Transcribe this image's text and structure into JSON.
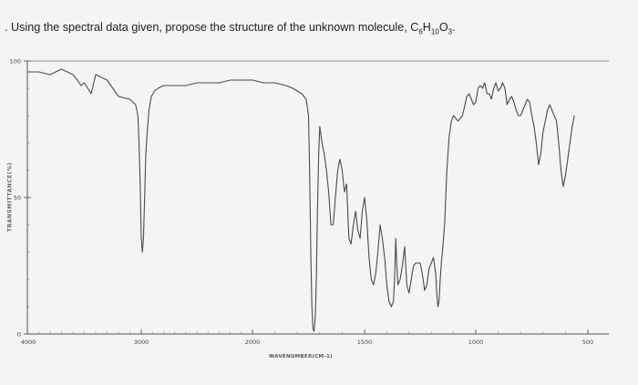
{
  "question": {
    "prefix": ". Using the spectral data given, propose the structure of the unknown molecule, ",
    "formula_parts": [
      "C",
      "6",
      "H",
      "10",
      "O",
      "3"
    ],
    "suffix": "."
  },
  "chart_data": {
    "type": "line",
    "title": "",
    "xlabel": "WAVENUMBER(CM-1)",
    "ylabel": "TRANSMITTANCE(%)",
    "xlim": [
      4000,
      500
    ],
    "ylim": [
      0,
      100
    ],
    "x_tick_labels": [
      "4000",
      "3000",
      "2000",
      "1500",
      "1000",
      "500"
    ],
    "y_tick_labels": [
      "100",
      "50",
      "0"
    ],
    "grid": false,
    "series": [
      {
        "values_x": [
          4000,
          3900,
          3800,
          3700,
          3600,
          3560,
          3530,
          3500,
          3470,
          3440,
          3400,
          3300,
          3200,
          3100,
          3050,
          3030,
          3020,
          3010,
          3000,
          2990,
          2980,
          2970,
          2960,
          2950,
          2930,
          2910,
          2880,
          2850,
          2800,
          2700,
          2600,
          2500,
          2400,
          2300,
          2200,
          2100,
          2000,
          1950,
          1900,
          1850,
          1820,
          1800,
          1780,
          1760,
          1750,
          1745,
          1740,
          1735,
          1730,
          1725,
          1720,
          1715,
          1710,
          1705,
          1700,
          1690,
          1680,
          1670,
          1660,
          1650,
          1640,
          1630,
          1620,
          1610,
          1600,
          1590,
          1580,
          1570,
          1560,
          1550,
          1540,
          1530,
          1520,
          1510,
          1500,
          1490,
          1480,
          1470,
          1460,
          1450,
          1440,
          1430,
          1420,
          1410,
          1400,
          1390,
          1380,
          1370,
          1365,
          1360,
          1355,
          1350,
          1340,
          1330,
          1320,
          1310,
          1300,
          1290,
          1280,
          1270,
          1260,
          1250,
          1240,
          1230,
          1220,
          1210,
          1200,
          1190,
          1180,
          1175,
          1170,
          1165,
          1160,
          1155,
          1150,
          1140,
          1130,
          1120,
          1110,
          1100,
          1080,
          1060,
          1040,
          1030,
          1020,
          1010,
          1000,
          990,
          980,
          970,
          960,
          950,
          940,
          930,
          920,
          910,
          900,
          890,
          880,
          870,
          860,
          850,
          840,
          830,
          820,
          810,
          800,
          790,
          780,
          770,
          760,
          750,
          740,
          730,
          720,
          710,
          700,
          690,
          680,
          670,
          660,
          650,
          640,
          630,
          620,
          610,
          600,
          590,
          580,
          570,
          560
        ],
        "values_y": [
          96,
          96,
          95,
          97,
          95,
          93,
          91,
          92,
          90,
          88,
          95,
          93,
          87,
          86,
          84,
          80,
          70,
          55,
          35,
          30,
          35,
          50,
          65,
          72,
          82,
          87,
          89,
          90,
          91,
          91,
          91,
          92,
          92,
          92,
          93,
          93,
          93,
          92,
          92,
          91,
          90,
          89,
          88,
          86,
          80,
          60,
          30,
          10,
          2,
          1,
          6,
          20,
          45,
          65,
          76,
          70,
          66,
          60,
          52,
          40,
          40,
          50,
          60,
          64,
          60,
          52,
          55,
          35,
          33,
          40,
          45,
          38,
          35,
          45,
          50,
          42,
          28,
          20,
          18,
          22,
          30,
          40,
          35,
          28,
          18,
          12,
          10,
          12,
          20,
          35,
          25,
          18,
          20,
          25,
          32,
          18,
          15,
          20,
          25,
          26,
          26,
          26,
          22,
          16,
          18,
          24,
          26,
          28,
          22,
          14,
          10,
          12,
          20,
          26,
          30,
          40,
          60,
          72,
          78,
          80,
          78,
          80,
          87,
          88,
          86,
          84,
          85,
          90,
          91,
          90,
          92,
          88,
          88,
          86,
          90,
          92,
          89,
          90,
          92,
          90,
          84,
          86,
          87,
          85,
          82,
          80,
          80,
          82,
          84,
          86,
          85,
          80,
          76,
          70,
          62,
          66,
          74,
          78,
          82,
          84,
          82,
          80,
          78,
          70,
          60,
          54,
          58,
          64,
          70,
          76,
          80
        ]
      }
    ]
  }
}
